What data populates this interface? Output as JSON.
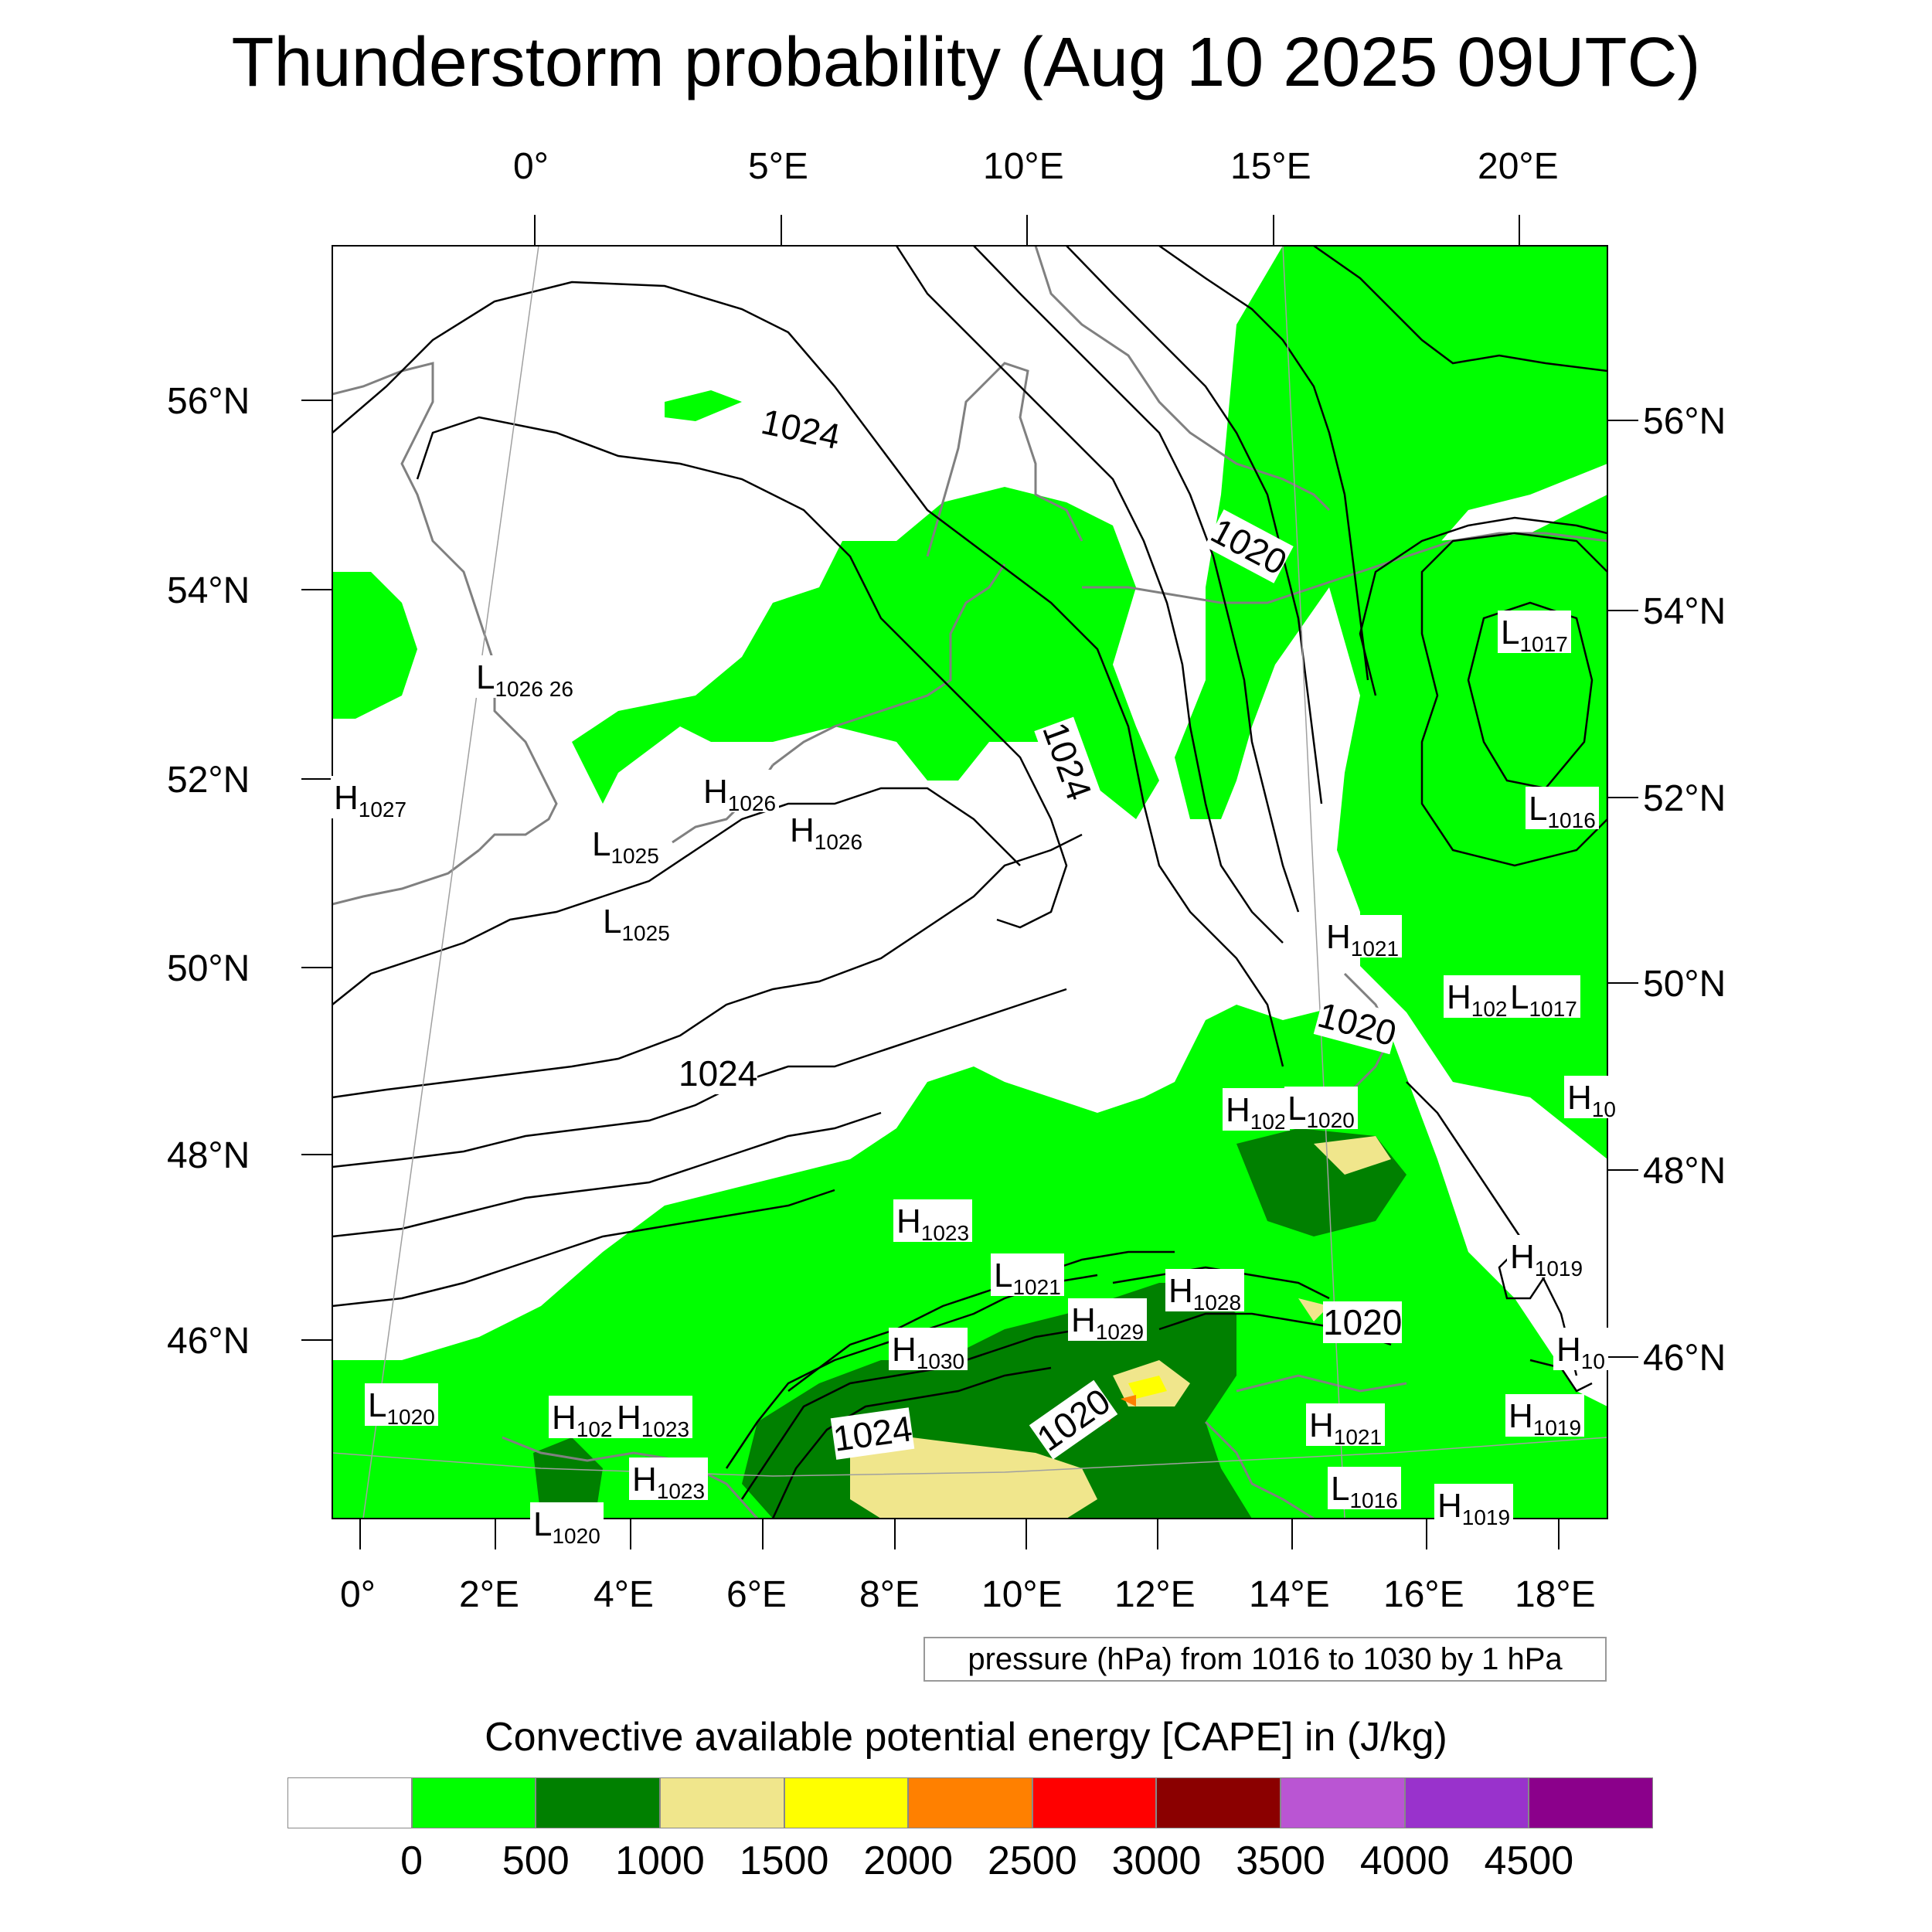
{
  "title": "Thunderstorm probability (Aug 10 2025 09UTC)",
  "top_lon_labels": [
    "0°",
    "5°E",
    "10°E",
    "15°E",
    "20°E"
  ],
  "bottom_lon_labels": [
    "0°",
    "2°E",
    "4°E",
    "6°E",
    "8°E",
    "10°E",
    "12°E",
    "14°E",
    "16°E",
    "18°E"
  ],
  "left_lat_labels": [
    "56°N",
    "54°N",
    "52°N",
    "50°N",
    "48°N",
    "46°N"
  ],
  "right_lat_labels": [
    "56°N",
    "54°N",
    "52°N",
    "50°N",
    "48°N",
    "46°N"
  ],
  "contour_info": "pressure (hPa) from 1016 to 1030 by 1 hPa",
  "legend_title": "Convective available potential energy [CAPE] in (J/kg)",
  "colorbar": {
    "colors": [
      "#ffffff",
      "#00ff00",
      "#008000",
      "#f0e68c",
      "#ffff00",
      "#ff8000",
      "#ff0000",
      "#8b0000",
      "#ba55d3",
      "#9932cc",
      "#8b008b"
    ],
    "ticks": [
      "0",
      "500",
      "1000",
      "1500",
      "2000",
      "2500",
      "3000",
      "3500",
      "4000",
      "4500"
    ]
  },
  "contour_labels": [
    {
      "text": "1024"
    },
    {
      "text": "1020"
    },
    {
      "text": "1024"
    },
    {
      "text": "1024"
    },
    {
      "text": "1020"
    },
    {
      "text": "1020"
    },
    {
      "text": "1024"
    },
    {
      "text": "1020"
    }
  ],
  "pressure_centers": [
    {
      "letter": "L",
      "value": "1026",
      "extra": "26"
    },
    {
      "letter": "H",
      "value": "1027"
    },
    {
      "letter": "H",
      "value": "1026"
    },
    {
      "letter": "H",
      "value": "1026"
    },
    {
      "letter": "L",
      "value": "1025"
    },
    {
      "letter": "L",
      "value": "1025"
    },
    {
      "letter": "L",
      "value": "1017"
    },
    {
      "letter": "L",
      "value": "1016"
    },
    {
      "letter": "H",
      "value": "1021"
    },
    {
      "letter": "H",
      "value": "102"
    },
    {
      "letter": "L",
      "value": "1017"
    },
    {
      "letter": "H",
      "value": "10"
    },
    {
      "letter": "H",
      "value": "102"
    },
    {
      "letter": "L",
      "value": "1020"
    },
    {
      "letter": "H",
      "value": "1023"
    },
    {
      "letter": "L",
      "value": "1021"
    },
    {
      "letter": "H",
      "value": "1028"
    },
    {
      "letter": "H",
      "value": "1029"
    },
    {
      "letter": "H",
      "value": "1030"
    },
    {
      "letter": "H",
      "value": "1019"
    },
    {
      "letter": "H",
      "value": "10"
    },
    {
      "letter": "L",
      "value": "1020"
    },
    {
      "letter": "H",
      "value": "102"
    },
    {
      "letter": "H",
      "value": "1023"
    },
    {
      "letter": "H",
      "value": "1023"
    },
    {
      "letter": "H",
      "value": "1021"
    },
    {
      "letter": "H",
      "value": "1019"
    },
    {
      "letter": "L",
      "value": "1016"
    },
    {
      "letter": "H",
      "value": "1019"
    },
    {
      "letter": "L",
      "value": "1020"
    }
  ]
}
